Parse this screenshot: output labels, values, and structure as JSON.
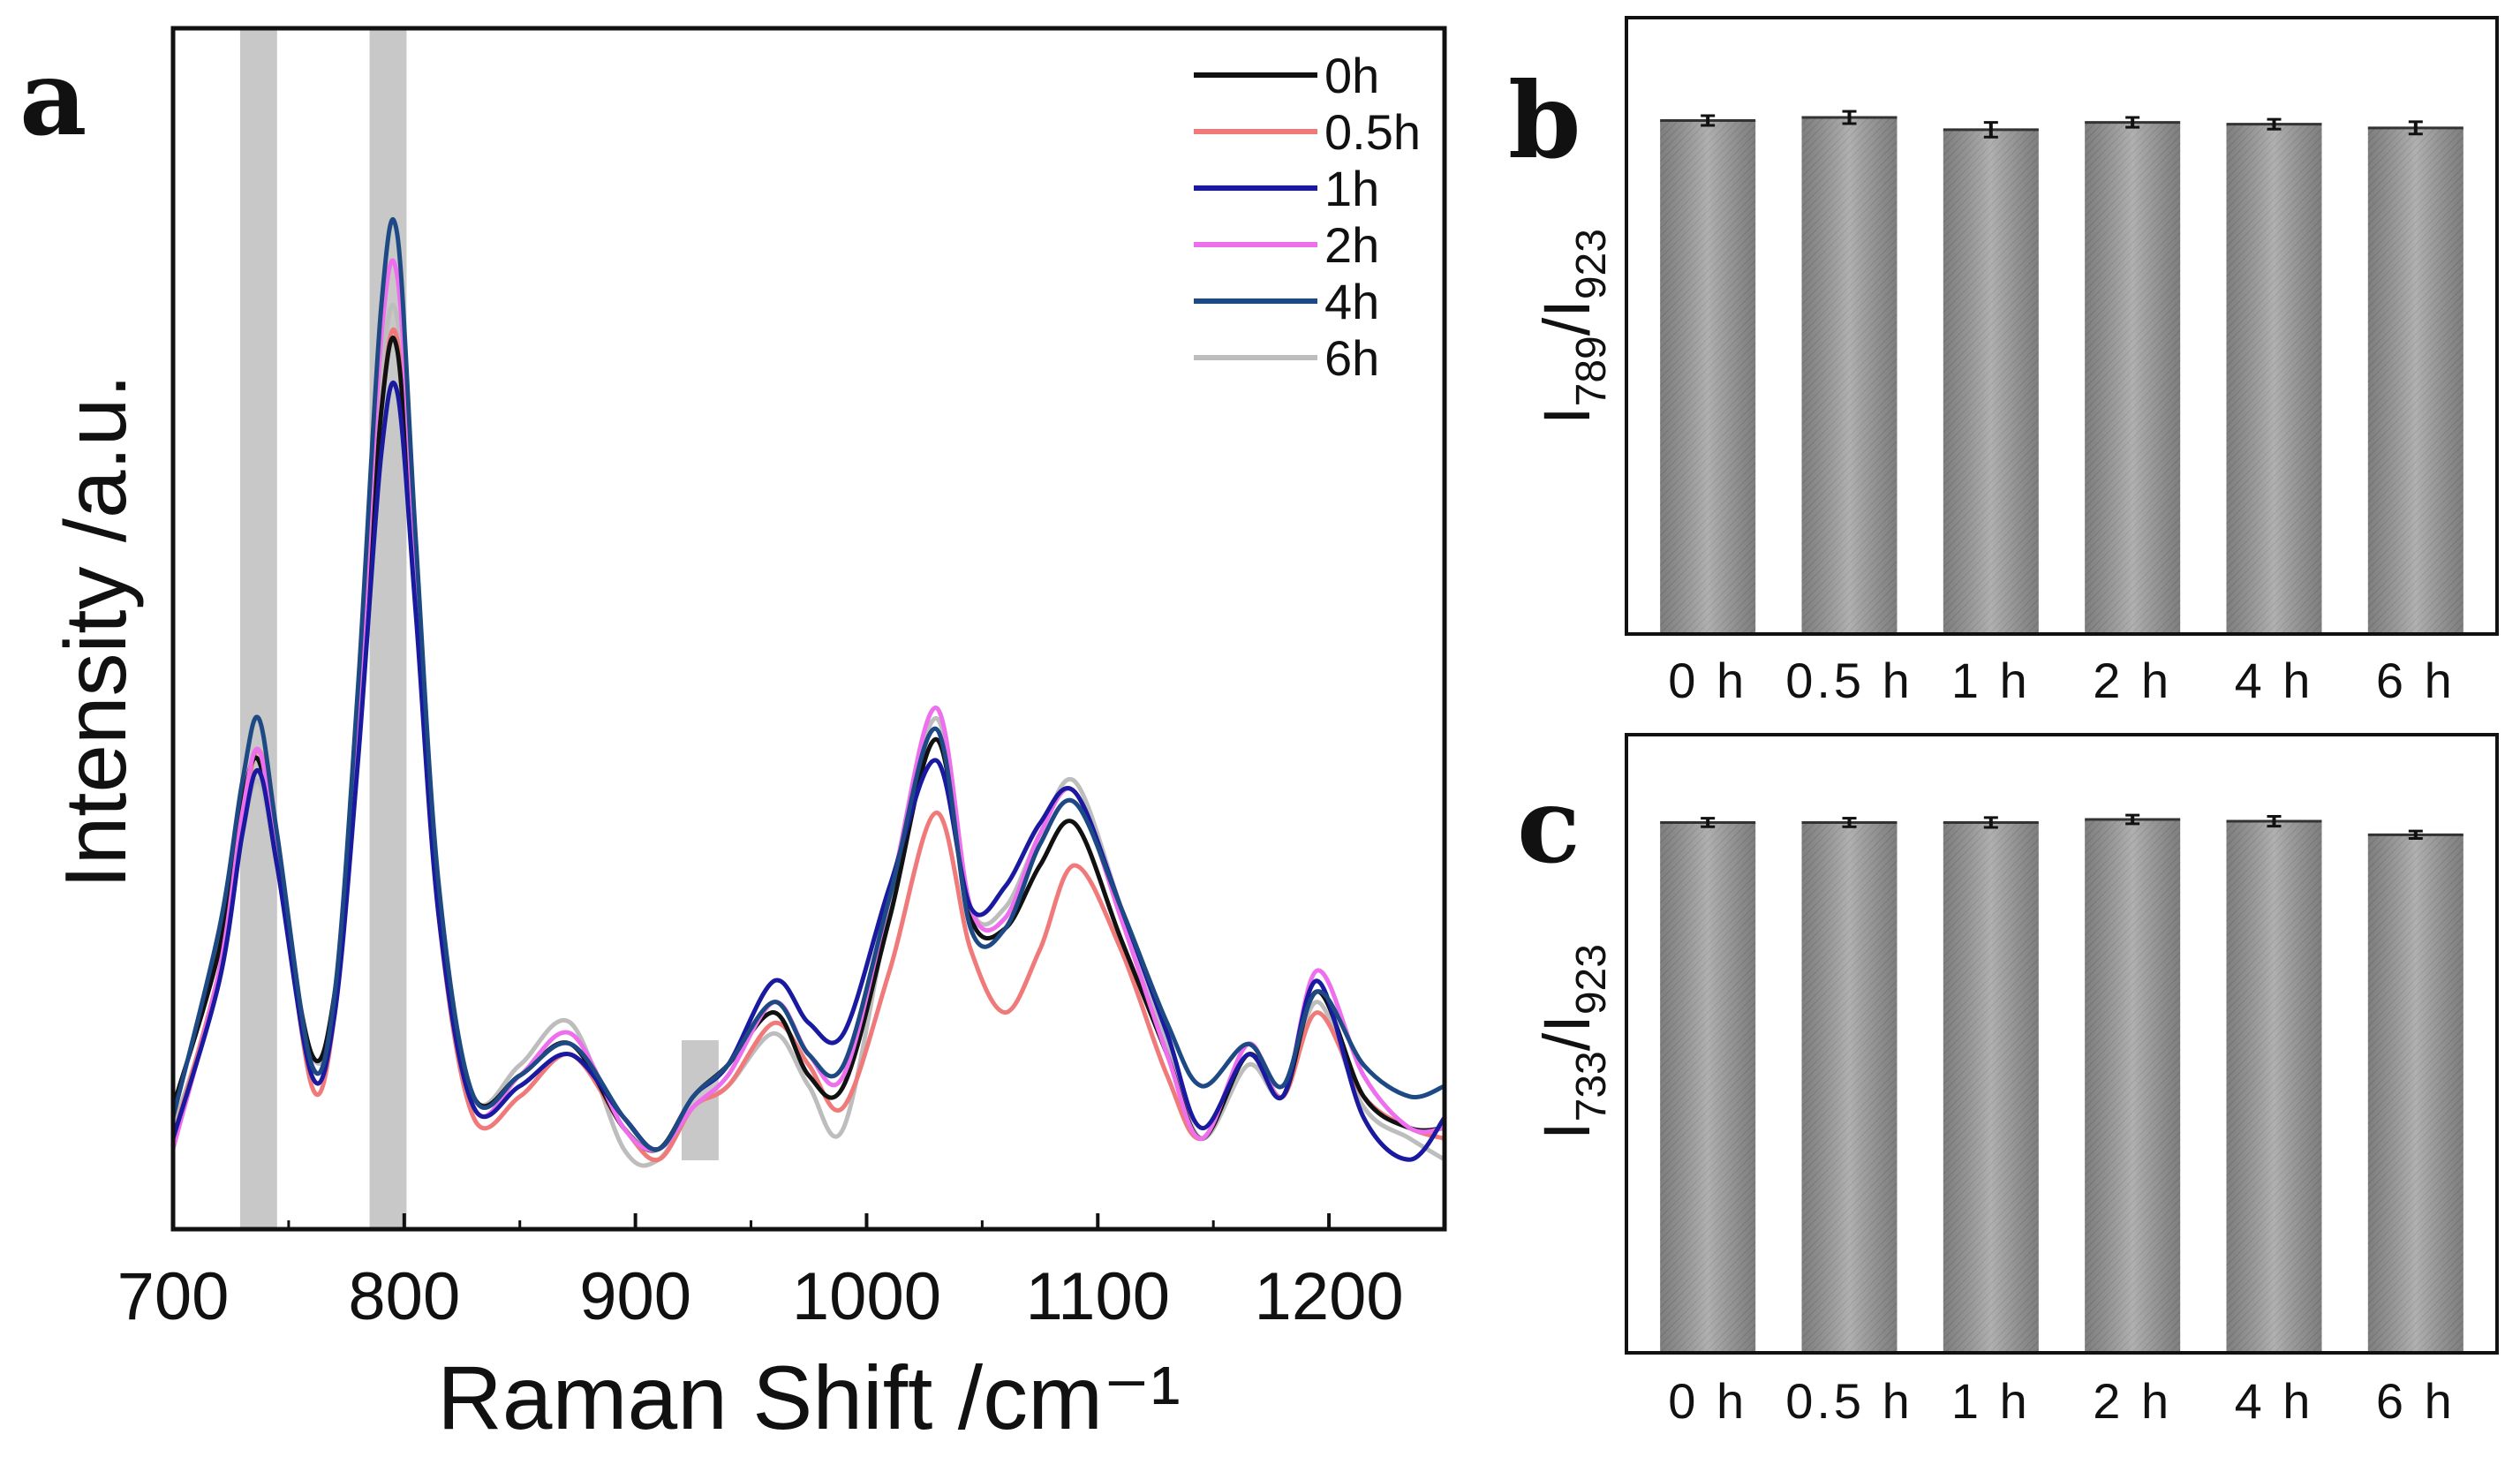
{
  "panels": {
    "a": "a",
    "b": "b",
    "c": "c"
  },
  "chart_data": [
    {
      "panel": "a",
      "type": "line",
      "title": "",
      "xlabel": "Raman Shift /cm⁻¹",
      "ylabel": "Intensity /a.u.",
      "xlim": [
        700,
        1250
      ],
      "ylim": [
        0,
        1
      ],
      "xticks": [
        700,
        800,
        900,
        1000,
        1100,
        1200
      ],
      "yticks": [],
      "highlight_bands": [
        [
          729,
          745
        ],
        [
          785,
          801
        ],
        [
          920,
          936
        ]
      ],
      "legend_position": "top-right",
      "x": [
        700,
        720,
        730,
        737,
        745,
        760,
        770,
        780,
        790,
        797,
        805,
        815,
        830,
        850,
        872,
        895,
        910,
        925,
        940,
        960,
        975,
        990,
        1010,
        1030,
        1045,
        1060,
        1075,
        1090,
        1110,
        1130,
        1145,
        1165,
        1180,
        1195,
        1215,
        1235,
        1250
      ],
      "series": [
        {
          "name": "0h",
          "color": "#111111",
          "values": [
            0.07,
            0.22,
            0.36,
            0.4,
            0.3,
            0.12,
            0.18,
            0.42,
            0.73,
            0.79,
            0.55,
            0.26,
            0.08,
            0.1,
            0.13,
            0.05,
            0.03,
            0.08,
            0.11,
            0.16,
            0.1,
            0.09,
            0.25,
            0.42,
            0.25,
            0.24,
            0.3,
            0.34,
            0.23,
            0.12,
            0.04,
            0.12,
            0.08,
            0.18,
            0.08,
            0.05,
            0.05
          ]
        },
        {
          "name": "0.5h",
          "color": "#f07a7a",
          "values": [
            0.04,
            0.2,
            0.34,
            0.41,
            0.32,
            0.09,
            0.16,
            0.42,
            0.73,
            0.8,
            0.56,
            0.25,
            0.06,
            0.08,
            0.12,
            0.05,
            0.02,
            0.07,
            0.09,
            0.15,
            0.11,
            0.07,
            0.2,
            0.35,
            0.22,
            0.16,
            0.22,
            0.3,
            0.22,
            0.1,
            0.04,
            0.12,
            0.08,
            0.16,
            0.08,
            0.05,
            0.04
          ]
        },
        {
          "name": "1h",
          "color": "#1a1aa0",
          "values": [
            0.04,
            0.19,
            0.33,
            0.39,
            0.3,
            0.1,
            0.16,
            0.4,
            0.69,
            0.75,
            0.54,
            0.25,
            0.07,
            0.09,
            0.12,
            0.06,
            0.03,
            0.08,
            0.11,
            0.19,
            0.15,
            0.14,
            0.28,
            0.4,
            0.26,
            0.28,
            0.34,
            0.37,
            0.26,
            0.14,
            0.05,
            0.12,
            0.08,
            0.19,
            0.06,
            0.02,
            0.06
          ]
        },
        {
          "name": "2h",
          "color": "#ee6fee",
          "values": [
            0.03,
            0.2,
            0.35,
            0.41,
            0.31,
            0.11,
            0.17,
            0.44,
            0.8,
            0.86,
            0.59,
            0.27,
            0.07,
            0.1,
            0.14,
            0.05,
            0.03,
            0.07,
            0.1,
            0.17,
            0.12,
            0.1,
            0.27,
            0.45,
            0.26,
            0.25,
            0.33,
            0.37,
            0.25,
            0.12,
            0.04,
            0.13,
            0.08,
            0.2,
            0.1,
            0.05,
            0.05
          ]
        },
        {
          "name": "4h",
          "color": "#1d4a85",
          "values": [
            0.06,
            0.24,
            0.38,
            0.44,
            0.33,
            0.11,
            0.18,
            0.47,
            0.83,
            0.9,
            0.61,
            0.28,
            0.08,
            0.1,
            0.13,
            0.06,
            0.03,
            0.08,
            0.11,
            0.17,
            0.12,
            0.11,
            0.27,
            0.43,
            0.24,
            0.24,
            0.32,
            0.36,
            0.26,
            0.15,
            0.09,
            0.13,
            0.09,
            0.18,
            0.11,
            0.08,
            0.09
          ]
        },
        {
          "name": "6h",
          "color": "#bdbdbd",
          "values": [
            0.05,
            0.19,
            0.33,
            0.38,
            0.3,
            0.12,
            0.17,
            0.43,
            0.76,
            0.82,
            0.57,
            0.27,
            0.08,
            0.11,
            0.15,
            0.03,
            0.02,
            0.07,
            0.09,
            0.14,
            0.09,
            0.05,
            0.26,
            0.44,
            0.26,
            0.26,
            0.33,
            0.38,
            0.26,
            0.13,
            0.04,
            0.11,
            0.08,
            0.17,
            0.07,
            0.04,
            0.02
          ]
        }
      ]
    },
    {
      "panel": "b",
      "type": "bar",
      "title": "",
      "xlabel": "",
      "ylabel_main": "I",
      "ylabel_sub1": "789",
      "ylabel_sep": "/I",
      "ylabel_sub2": "923",
      "ylim": [
        0,
        1
      ],
      "categories": [
        "0 h",
        "0.5 h",
        "1 h",
        "2 h",
        "4 h",
        "6 h"
      ],
      "values": [
        0.835,
        0.84,
        0.82,
        0.832,
        0.829,
        0.823
      ],
      "errors": [
        0.008,
        0.01,
        0.012,
        0.008,
        0.008,
        0.01
      ]
    },
    {
      "panel": "c",
      "type": "bar",
      "title": "",
      "xlabel": "",
      "ylabel_main": "I",
      "ylabel_sub1": "733",
      "ylabel_sep": "/I",
      "ylabel_sub2": "923",
      "ylim": [
        0,
        1
      ],
      "categories": [
        "0 h",
        "0.5 h",
        "1 h",
        "2 h",
        "4 h",
        "6 h"
      ],
      "values": [
        0.86,
        0.86,
        0.86,
        0.865,
        0.862,
        0.84
      ],
      "errors": [
        0.007,
        0.007,
        0.008,
        0.007,
        0.008,
        0.006
      ]
    }
  ]
}
